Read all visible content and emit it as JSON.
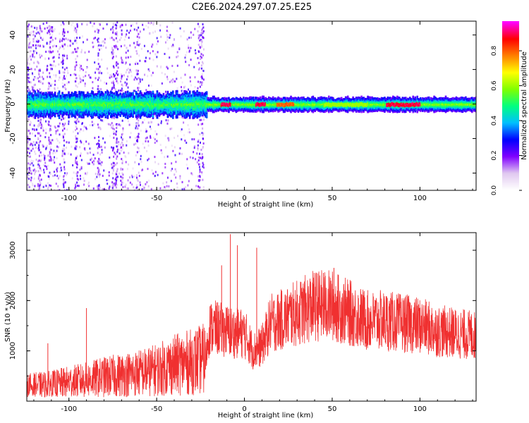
{
  "title": "C2E6.2024.297.07.25.E25",
  "chart_data": [
    {
      "type": "heatmap",
      "xlabel": "Height of straight line (km)",
      "ylabel": "Frequency (Hz)",
      "xlim": [
        -124,
        132
      ],
      "ylim": [
        -50,
        48
      ],
      "x_ticks": [
        "-100",
        "-50",
        "0",
        "50",
        "100"
      ],
      "y_ticks": [
        "-40",
        "-20",
        "0",
        "20",
        "40"
      ],
      "colorbar": {
        "label": "Normalized spectral amplitude",
        "range": [
          0,
          0.97
        ],
        "ticks": [
          "0.0",
          "0.2",
          "0.4",
          "0.6",
          "0.8"
        ],
        "colormap": [
          "#ffffff",
          "#e0c8f0",
          "#8000ff",
          "#0000ff",
          "#00c0ff",
          "#00ff80",
          "#80ff00",
          "#ffff00",
          "#ff8000",
          "#ff0000",
          "#ff00ff"
        ]
      },
      "band": {
        "center_hz": 0.5,
        "peak_segments": [
          {
            "x": [
              -14,
              -8
            ],
            "value": 0.9
          },
          {
            "x": [
              6,
              12
            ],
            "value": 0.9
          },
          {
            "x": [
              18,
              28
            ],
            "value": 0.8
          },
          {
            "x": [
              80,
              100
            ],
            "value": 0.9
          }
        ]
      },
      "grid": false
    },
    {
      "type": "line",
      "xlabel": "Height of straight line (km)",
      "ylabel": "SNR (10 * v/v)",
      "xlim": [
        -124,
        132
      ],
      "ylim": [
        0,
        3350
      ],
      "x_ticks": [
        "-100",
        "-50",
        "0",
        "50",
        "100"
      ],
      "y_ticks": [
        "1000",
        "2000",
        "3000"
      ],
      "color": "#f03030",
      "trend": {
        "x": [
          -124,
          -110,
          -100,
          -90,
          -80,
          -70,
          -60,
          -50,
          -40,
          -30,
          -22,
          -20,
          -15,
          -10,
          -5,
          0,
          5,
          10,
          15,
          20,
          30,
          40,
          50,
          60,
          70,
          80,
          90,
          100,
          110,
          120,
          132
        ],
        "y": [
          300,
          330,
          380,
          420,
          480,
          520,
          560,
          620,
          720,
          780,
          850,
          1450,
          1450,
          1400,
          1350,
          1350,
          1000,
          1100,
          1550,
          1600,
          1750,
          1900,
          1900,
          1750,
          1600,
          1600,
          1550,
          1500,
          1400,
          1350,
          1300
        ]
      },
      "spikes": [
        {
          "x": -8,
          "y": 3320
        },
        {
          "x": -4,
          "y": 3100
        },
        {
          "x": -13,
          "y": 2700
        },
        {
          "x": 7,
          "y": 3050
        },
        {
          "x": 51,
          "y": 2650
        },
        {
          "x": 45,
          "y": 2550
        },
        {
          "x": -112,
          "y": 1150
        },
        {
          "x": -90,
          "y": 1850
        }
      ],
      "grid": false
    }
  ]
}
